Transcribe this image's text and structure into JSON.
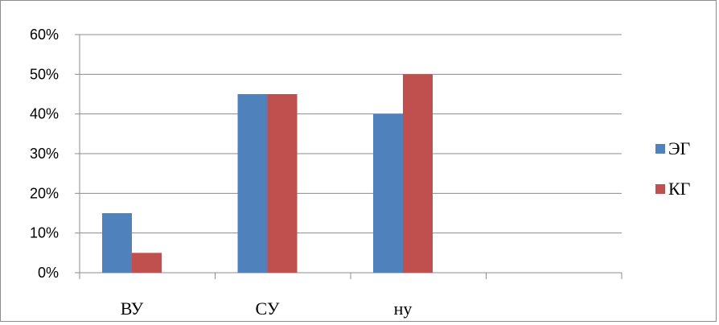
{
  "chart_data": {
    "type": "bar",
    "categories": [
      "ВУ",
      "СУ",
      "ну",
      ""
    ],
    "series": [
      {
        "name": "ЭГ",
        "values": [
          0.15,
          0.45,
          0.4,
          null
        ],
        "color": "#4f81bd"
      },
      {
        "name": "КГ",
        "values": [
          0.05,
          0.45,
          0.5,
          null
        ],
        "color": "#c0504d"
      }
    ],
    "yticks": [
      "0%",
      "10%",
      "20%",
      "30%",
      "40%",
      "50%",
      "60%"
    ],
    "ylim": [
      0,
      0.6
    ],
    "grid": true,
    "legend_position": "right",
    "title": "",
    "xlabel": "",
    "ylabel": ""
  }
}
